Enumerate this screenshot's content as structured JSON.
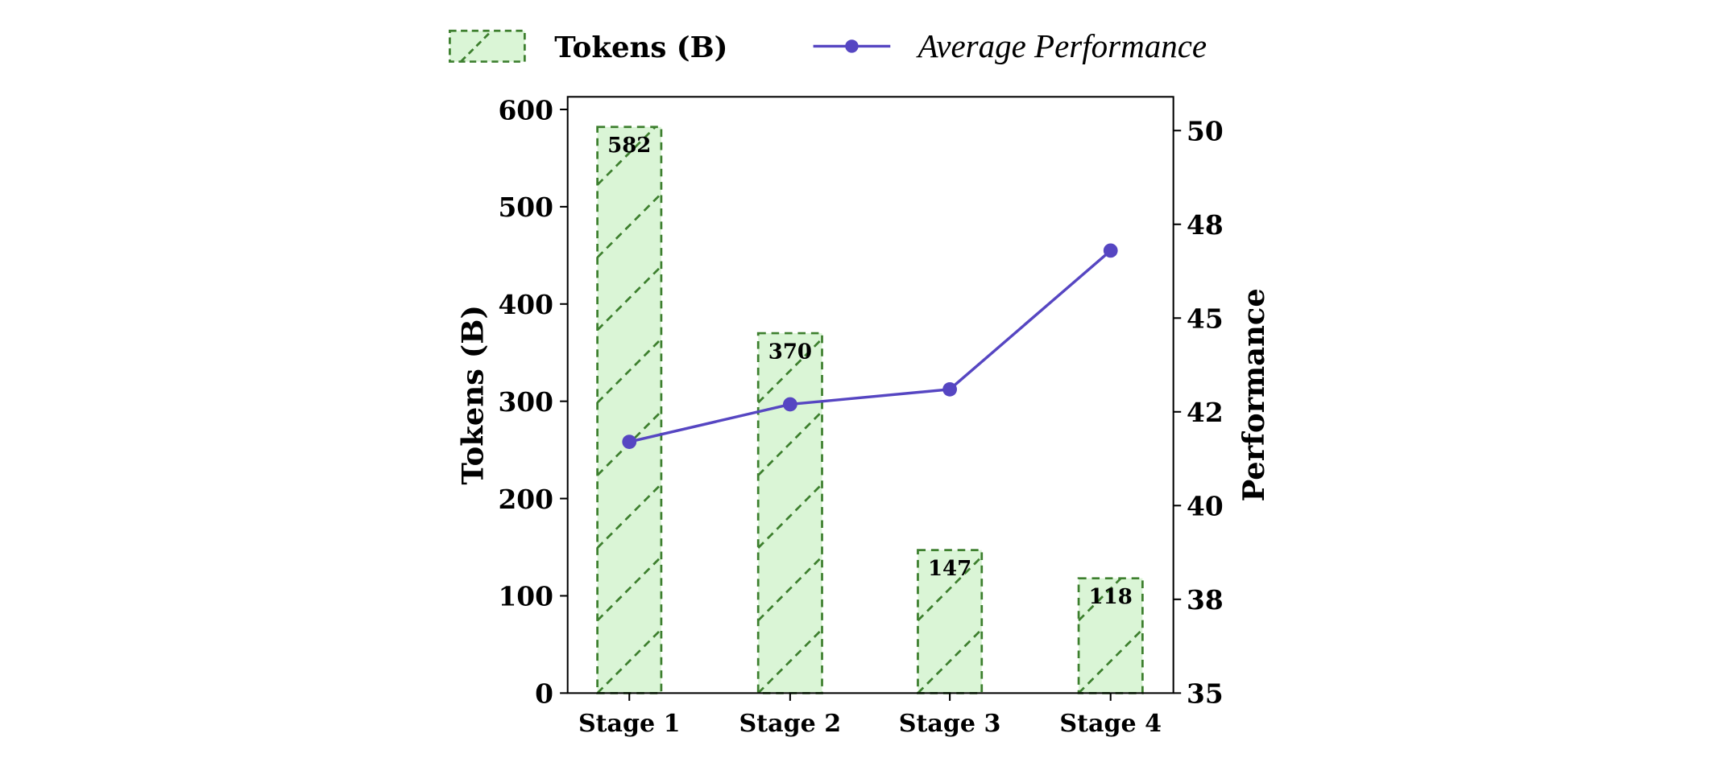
{
  "chart_data": {
    "type": "bar+line",
    "categories": [
      "Stage 1",
      "Stage 2",
      "Stage 3",
      "Stage 4"
    ],
    "series": [
      {
        "name": "Tokens (B)",
        "type": "bar",
        "axis": "left",
        "values": [
          582,
          370,
          147,
          118
        ],
        "data_labels": [
          "582",
          "370",
          "147",
          "118"
        ]
      },
      {
        "name": "Average Performance",
        "type": "line",
        "axis": "right",
        "values": [
          41.7,
          42.7,
          43.1,
          46.8
        ]
      }
    ],
    "left_axis": {
      "label": "Tokens (B)",
      "range": [
        0,
        613
      ],
      "ticks": [
        0,
        100,
        200,
        300,
        400,
        500,
        600
      ],
      "tick_labels": [
        "0",
        "100",
        "200",
        "300",
        "400",
        "500",
        "600"
      ]
    },
    "right_axis": {
      "label": "Performance",
      "range": [
        35,
        50.9
      ],
      "ticks": [
        35,
        37.5,
        40,
        42.5,
        45,
        47.5,
        50
      ],
      "tick_labels": [
        "35",
        "38",
        "40",
        "42",
        "45",
        "48",
        "50"
      ]
    },
    "legend": {
      "placement": "top",
      "entries": [
        "Tokens (B)",
        "Average Performance"
      ]
    },
    "grid": false,
    "colors": {
      "bar_fill": "#daf5d6",
      "bar_edge": "#3d7f2e",
      "line": "#5646c2"
    }
  }
}
